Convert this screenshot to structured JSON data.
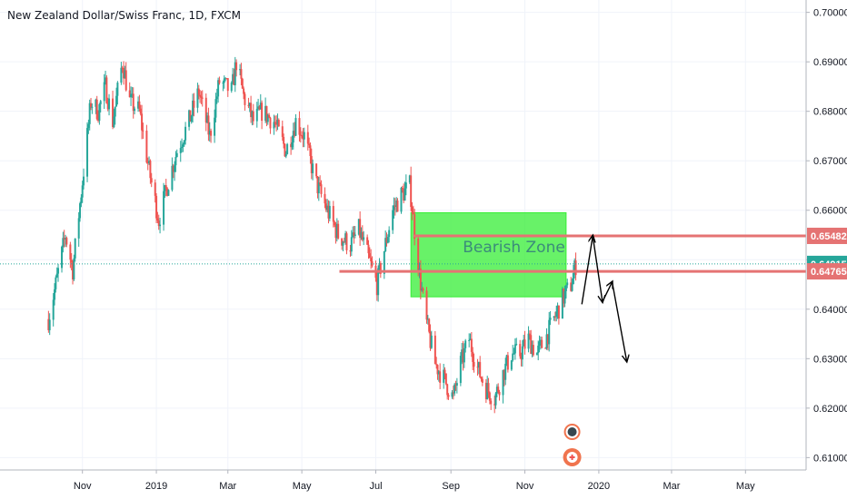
{
  "colors": {
    "up": "#26a69a",
    "down": "#ef5350",
    "grid": "#f0f3fa",
    "axis_text": "#131722",
    "zone_fill": "#35ee35",
    "zone_text": "#3b8c7a",
    "resistance_line": "#e57373",
    "price_line": "#26a69a",
    "arrow": "#000000",
    "event_orange": "#f0744e"
  },
  "chart_data": {
    "type": "candlestick",
    "title": "New Zealand Dollar/Swiss Franc, 1D, FXCM",
    "xlabel": "",
    "ylabel": "",
    "ylim": [
      0.6075,
      0.7025
    ],
    "y_ticks": [
      "0.61000",
      "0.62000",
      "0.63000",
      "0.64000",
      "0.65000",
      "0.66000",
      "0.67000",
      "0.68000",
      "0.69000",
      "0.70000"
    ],
    "x_ticks": [
      {
        "label": "Nov",
        "date": "2018-11-01"
      },
      {
        "label": "2019",
        "date": "2019-01-01"
      },
      {
        "label": "Mar",
        "date": "2019-03-01"
      },
      {
        "label": "May",
        "date": "2019-05-01"
      },
      {
        "label": "Jul",
        "date": "2019-07-01"
      },
      {
        "label": "Sep",
        "date": "2019-09-01"
      },
      {
        "label": "Nov",
        "date": "2019-11-01"
      },
      {
        "label": "2020",
        "date": "2020-01-01"
      },
      {
        "label": "Mar",
        "date": "2020-03-01"
      },
      {
        "label": "May",
        "date": "2020-05-01"
      }
    ],
    "xlim": [
      "2018-08-25",
      "2020-06-20"
    ],
    "grid": true,
    "price_path": [
      [
        "2018-10-04",
        0.638
      ],
      [
        "2018-10-10",
        0.645
      ],
      [
        "2018-10-18",
        0.655
      ],
      [
        "2018-10-24",
        0.648
      ],
      [
        "2018-11-02",
        0.668
      ],
      [
        "2018-11-08",
        0.682
      ],
      [
        "2018-11-14",
        0.68
      ],
      [
        "2018-11-20",
        0.685
      ],
      [
        "2018-11-26",
        0.678
      ],
      [
        "2018-12-04",
        0.69
      ],
      [
        "2018-12-10",
        0.682
      ],
      [
        "2018-12-18",
        0.68
      ],
      [
        "2018-12-26",
        0.668
      ],
      [
        "2019-01-03",
        0.658
      ],
      [
        "2019-01-10",
        0.665
      ],
      [
        "2019-01-18",
        0.672
      ],
      [
        "2019-01-28",
        0.678
      ],
      [
        "2019-02-05",
        0.684
      ],
      [
        "2019-02-14",
        0.675
      ],
      [
        "2019-02-22",
        0.686
      ],
      [
        "2019-03-04",
        0.684
      ],
      [
        "2019-03-08",
        0.69
      ],
      [
        "2019-03-14",
        0.683
      ],
      [
        "2019-03-22",
        0.678
      ],
      [
        "2019-03-29",
        0.68
      ],
      [
        "2019-04-08",
        0.678
      ],
      [
        "2019-04-18",
        0.672
      ],
      [
        "2019-04-26",
        0.678
      ],
      [
        "2019-05-03",
        0.675
      ],
      [
        "2019-05-12",
        0.666
      ],
      [
        "2019-05-22",
        0.66
      ],
      [
        "2019-05-31",
        0.655
      ],
      [
        "2019-06-10",
        0.653
      ],
      [
        "2019-06-17",
        0.656
      ],
      [
        "2019-06-24",
        0.651
      ],
      [
        "2019-07-02",
        0.645
      ],
      [
        "2019-07-08",
        0.652
      ],
      [
        "2019-07-15",
        0.66
      ],
      [
        "2019-07-22",
        0.663
      ],
      [
        "2019-07-29",
        0.665
      ],
      [
        "2019-08-02",
        0.656
      ],
      [
        "2019-08-06",
        0.647
      ],
      [
        "2019-08-12",
        0.637
      ],
      [
        "2019-08-19",
        0.629
      ],
      [
        "2019-08-26",
        0.626
      ],
      [
        "2019-09-03",
        0.622
      ],
      [
        "2019-09-09",
        0.629
      ],
      [
        "2019-09-16",
        0.634
      ],
      [
        "2019-09-23",
        0.628
      ],
      [
        "2019-09-30",
        0.624
      ],
      [
        "2019-10-07",
        0.622
      ],
      [
        "2019-10-14",
        0.627
      ],
      [
        "2019-10-21",
        0.631
      ],
      [
        "2019-10-28",
        0.631
      ],
      [
        "2019-11-04",
        0.634
      ],
      [
        "2019-11-11",
        0.631
      ],
      [
        "2019-11-18",
        0.634
      ],
      [
        "2019-11-25",
        0.638
      ],
      [
        "2019-12-02",
        0.642
      ],
      [
        "2019-12-09",
        0.645
      ],
      [
        "2019-12-13",
        0.649
      ]
    ],
    "current_price": 0.64915,
    "price_labels": [
      "0.65482",
      "0.64915",
      "0.64765"
    ],
    "levels": [
      {
        "price": 0.65482,
        "start": "2019-08-01",
        "end": "2020-06-20"
      },
      {
        "price": 0.64765,
        "start": "2019-06-01",
        "end": "2020-06-20"
      }
    ],
    "zone": {
      "label": "Bearish Zone",
      "start": "2019-07-30",
      "end": "2019-12-05",
      "top": 0.6595,
      "bottom": 0.6425
    },
    "projection_arrows": [
      [
        [
          "2019-12-18",
          0.641
        ],
        [
          "2019-12-27",
          0.6548
        ]
      ],
      [
        [
          "2019-12-27",
          0.6548
        ],
        [
          "2020-01-04",
          0.6415
        ]
      ],
      [
        [
          "2020-01-04",
          0.6415
        ],
        [
          "2020-01-12",
          0.6455
        ]
      ],
      [
        [
          "2020-01-12",
          0.6455
        ],
        [
          "2020-01-24",
          0.6295
        ]
      ]
    ],
    "event_markers": [
      "flag",
      "plus"
    ]
  }
}
